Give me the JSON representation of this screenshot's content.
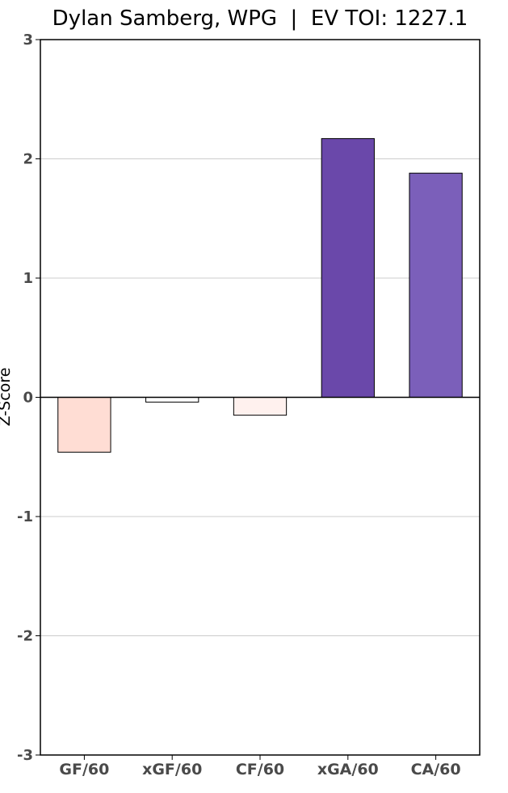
{
  "chart_data": {
    "type": "bar",
    "title": "Dylan Samberg, WPG  |  EV TOI: 1227.1",
    "xlabel": "",
    "ylabel": "Z-Score",
    "ylim": [
      -3,
      3
    ],
    "yticks": [
      "-3",
      "-2",
      "-1",
      "0",
      "1",
      "2",
      "3"
    ],
    "grid": "horizontal",
    "categories": [
      "GF/60",
      "xGF/60",
      "CF/60",
      "xGA/60",
      "CA/60"
    ],
    "values": [
      -0.46,
      -0.04,
      -0.15,
      2.17,
      1.88
    ],
    "colors": [
      "#ffddd4",
      "#ffffff",
      "#fff1ee",
      "#6a48aa",
      "#7b5fba"
    ]
  }
}
